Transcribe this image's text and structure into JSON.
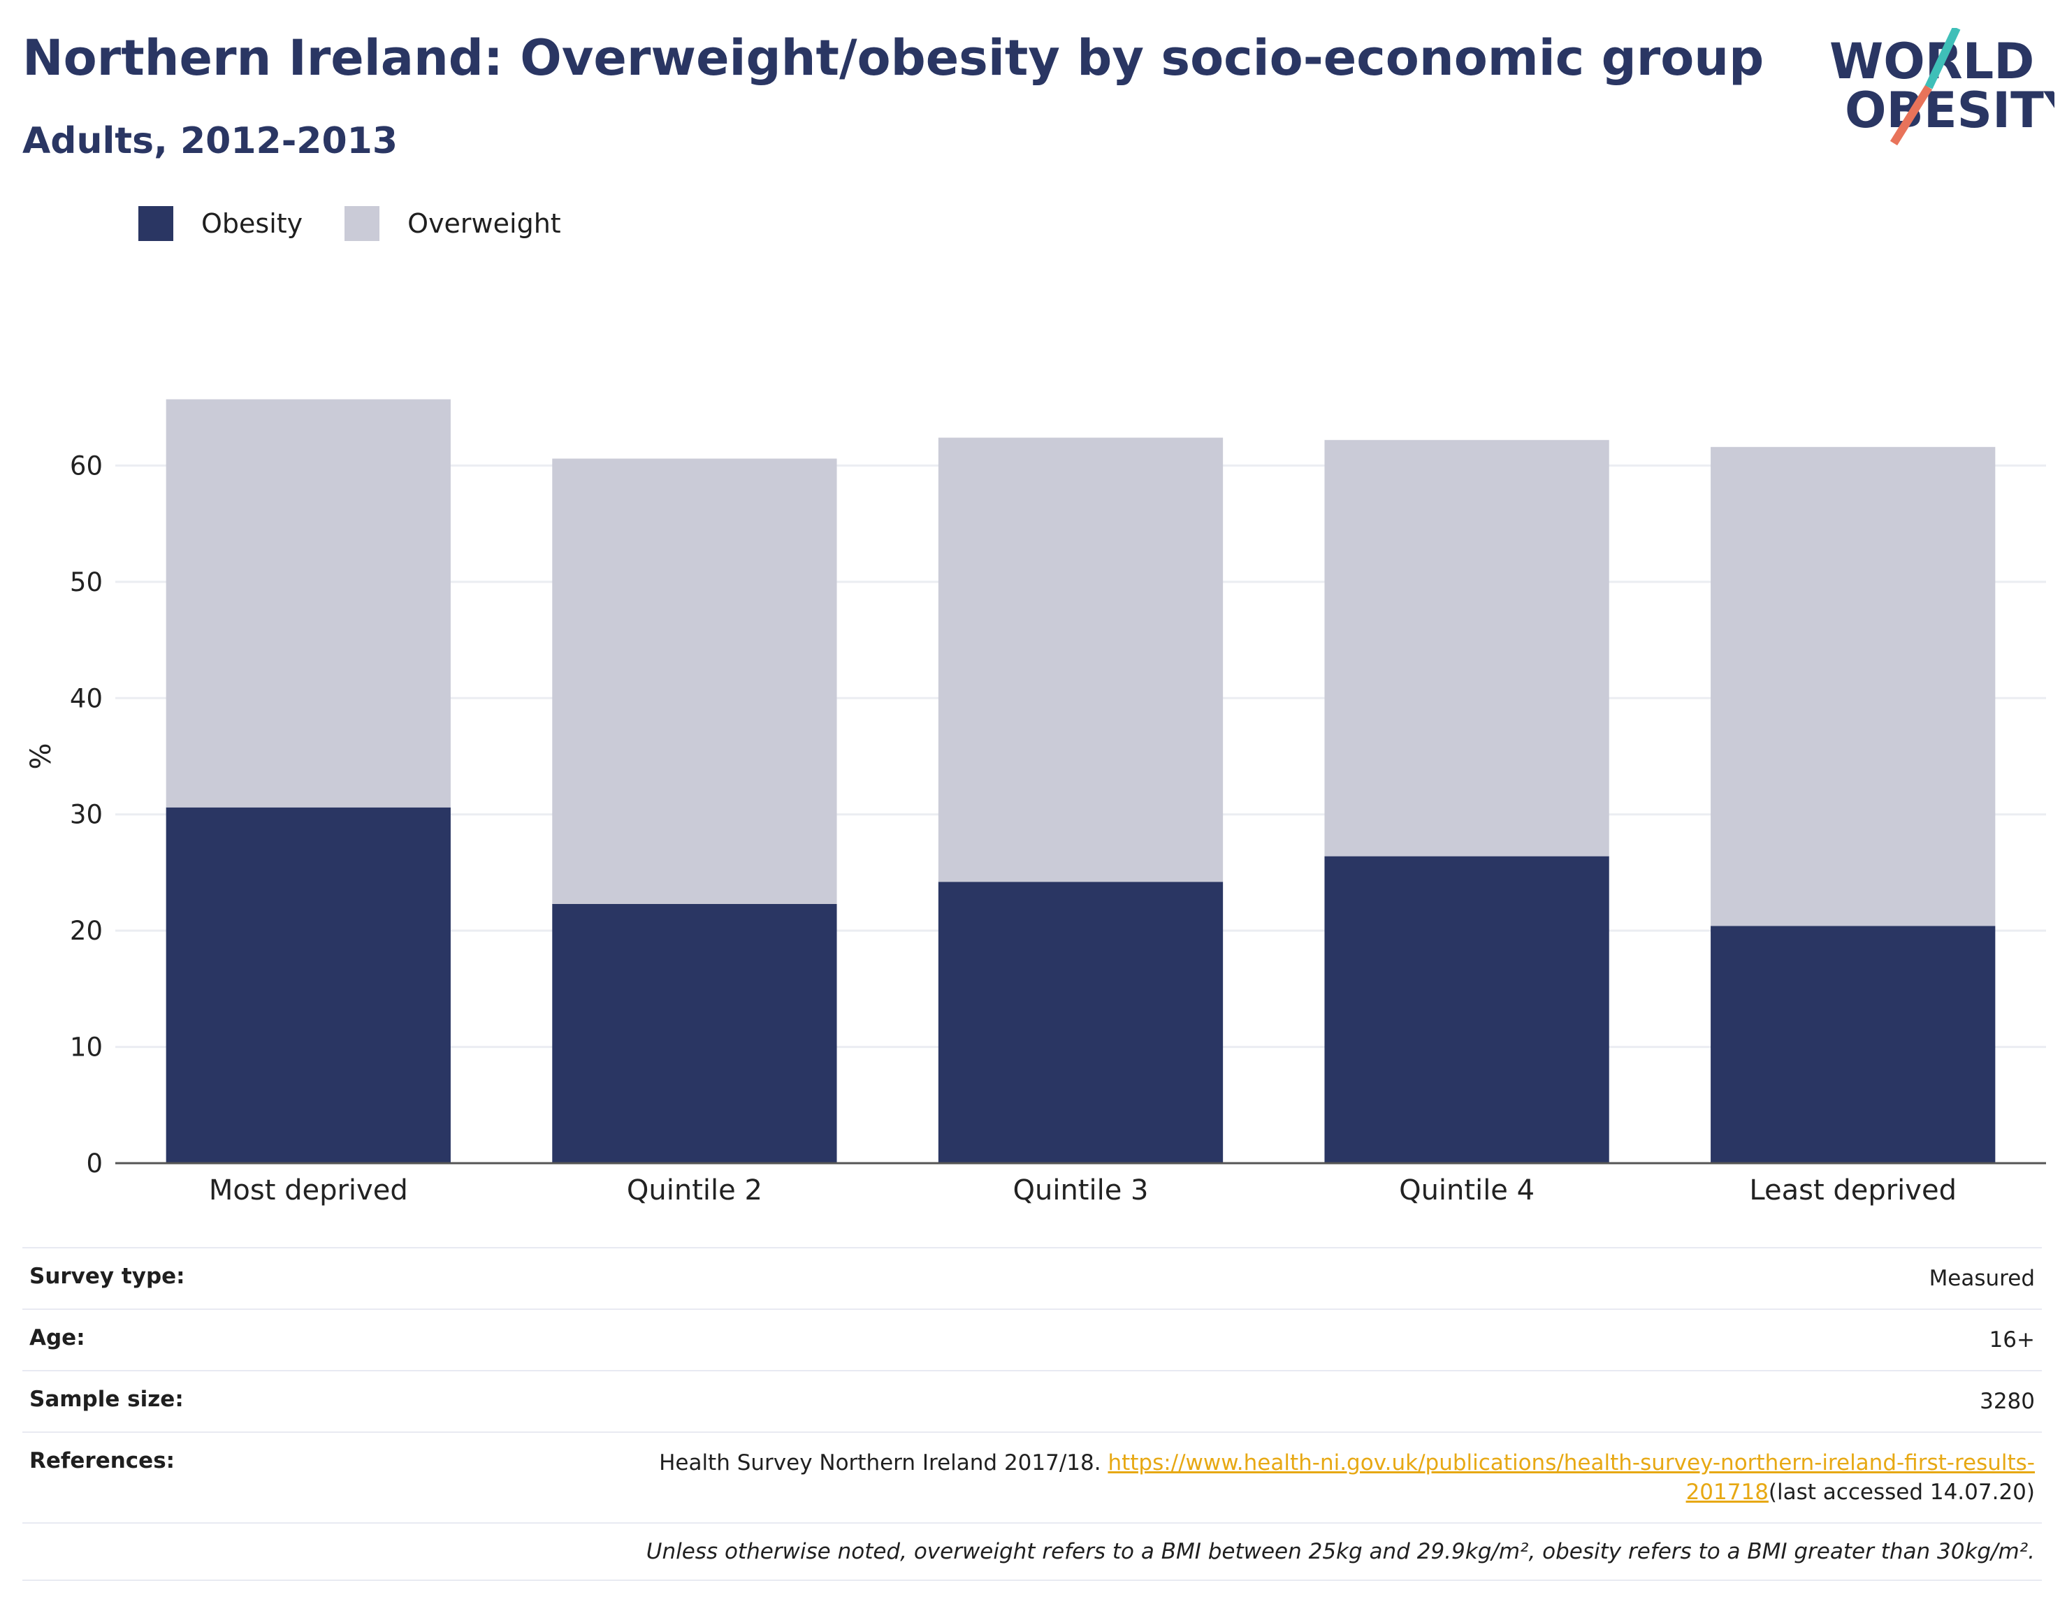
{
  "header": {
    "title": "Northern Ireland: Overweight/obesity by socio-economic group",
    "subtitle": "Adults, 2012-2013",
    "logo_line1": "WORLD",
    "logo_line2": "OBESITY"
  },
  "colors": {
    "obesity": "#2a3663",
    "overweight": "#cacbd7",
    "accent_link": "#e7a813",
    "logo_teal": "#3fbfb8",
    "logo_coral": "#e8735a"
  },
  "chart_data": {
    "type": "bar",
    "stacked": true,
    "categories": [
      "Most deprived",
      "Quintile 2",
      "Quintile 3",
      "Quintile 4",
      "Least deprived"
    ],
    "series": [
      {
        "name": "Obesity",
        "values": [
          30.6,
          22.3,
          24.2,
          26.4,
          20.4
        ]
      },
      {
        "name": "Overweight",
        "values": [
          35.1,
          38.3,
          38.2,
          35.8,
          41.2
        ]
      }
    ],
    "ylabel": "%",
    "ylim": [
      0,
      70
    ],
    "yticks": [
      "0",
      "10",
      "20",
      "30",
      "40",
      "50",
      "60"
    ],
    "grid": true,
    "legend_position": "top-left"
  },
  "info": {
    "survey_type": {
      "label": "Survey type:",
      "value": "Measured"
    },
    "age": {
      "label": "Age:",
      "value": "16+"
    },
    "sample_size": {
      "label": "Sample size:",
      "value": "3280"
    },
    "references": {
      "label": "References:",
      "text": "Health Survey Northern Ireland 2017/18. ",
      "link_part1": "https://www.health-ni.gov.uk/publications/health-survey-northern-ireland-first-results-",
      "link_part2": "201718",
      "suffix": "(last accessed 14.07.20)"
    },
    "note": "Unless otherwise noted, overweight refers to a BMI between 25kg and 29.9kg/m², obesity refers to a BMI greater than 30kg/m²."
  }
}
